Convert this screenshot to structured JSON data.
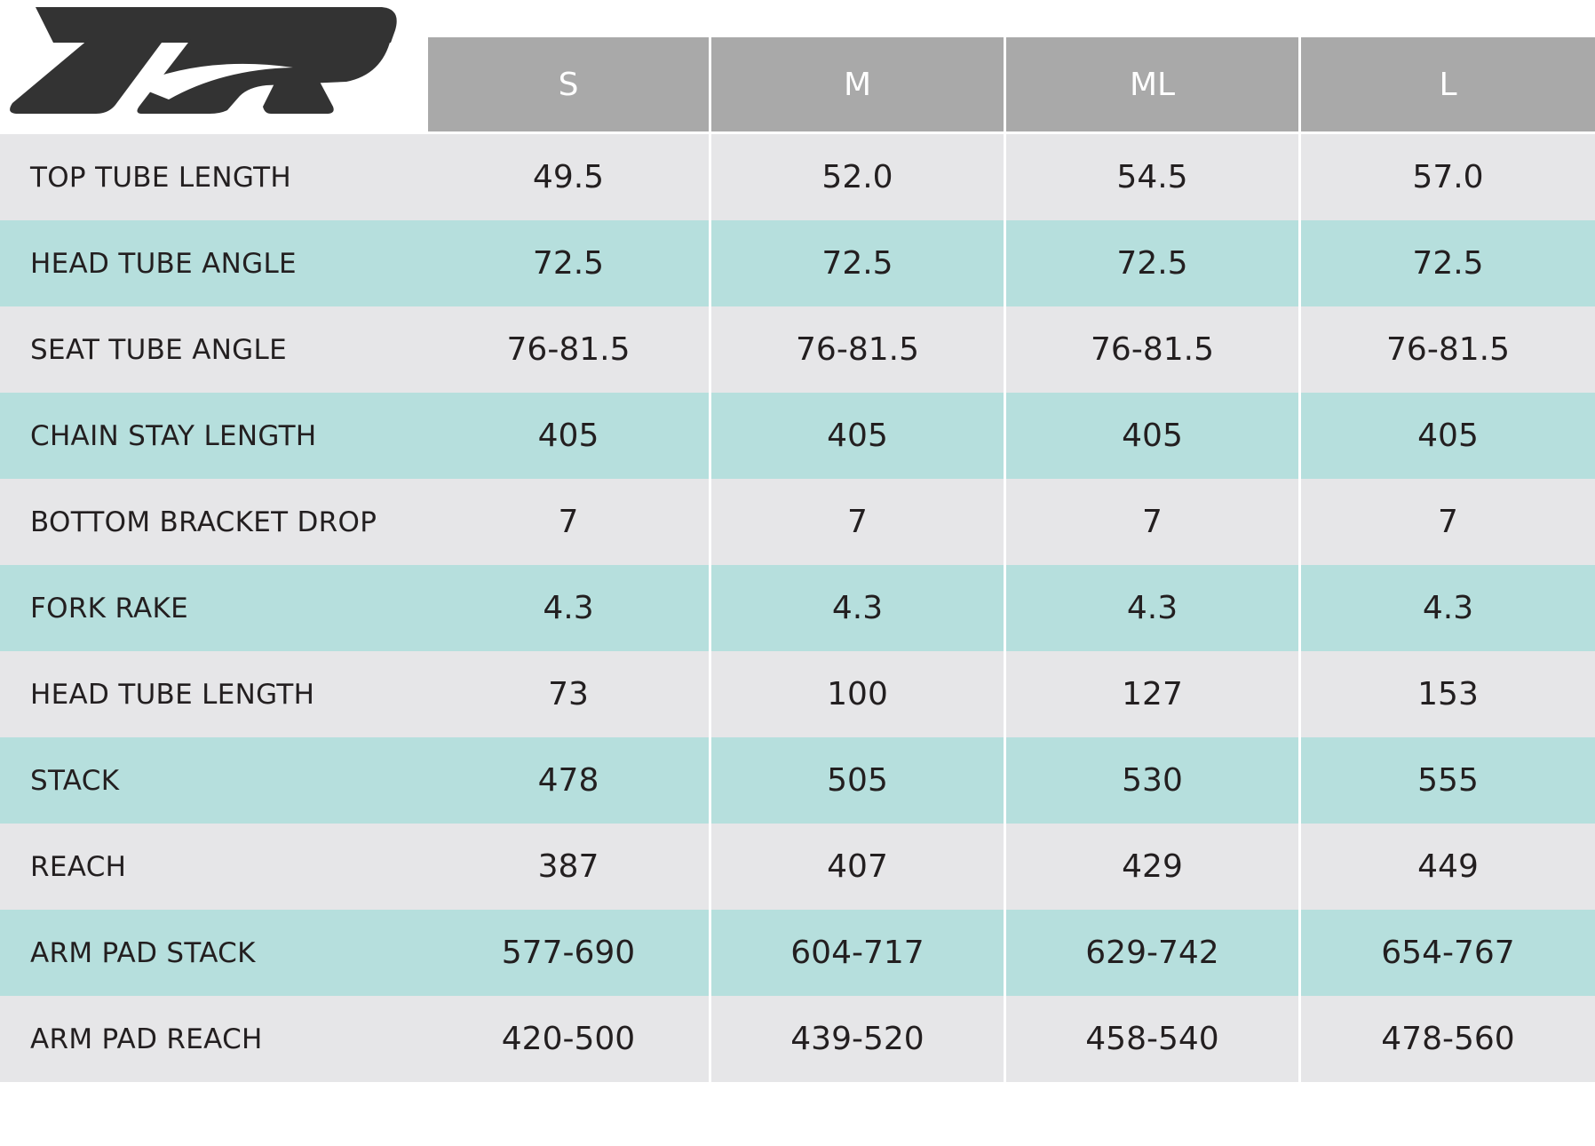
{
  "brand": {
    "logo_text": "TR",
    "logo_color": "#333333"
  },
  "colors": {
    "header_bg": "#a9a9a9",
    "header_text": "#ffffff",
    "row_gray": "#e6e6e8",
    "row_teal": "#b6dfdd",
    "text": "#231f20"
  },
  "table": {
    "columns": [
      "S",
      "M",
      "ML",
      "L"
    ],
    "rows": [
      {
        "label": "TOP TUBE LENGTH",
        "values": [
          "49.5",
          "52.0",
          "54.5",
          "57.0"
        ]
      },
      {
        "label": "HEAD TUBE ANGLE",
        "values": [
          "72.5",
          "72.5",
          "72.5",
          "72.5"
        ]
      },
      {
        "label": "SEAT TUBE ANGLE",
        "values": [
          "76-81.5",
          "76-81.5",
          "76-81.5",
          "76-81.5"
        ]
      },
      {
        "label": "CHAIN STAY LENGTH",
        "values": [
          "405",
          "405",
          "405",
          "405"
        ]
      },
      {
        "label": "BOTTOM BRACKET DROP",
        "values": [
          "7",
          "7",
          "7",
          "7"
        ]
      },
      {
        "label": "FORK RAKE",
        "values": [
          "4.3",
          "4.3",
          "4.3",
          "4.3"
        ]
      },
      {
        "label": "HEAD TUBE LENGTH",
        "values": [
          "73",
          "100",
          "127",
          "153"
        ]
      },
      {
        "label": "STACK",
        "values": [
          "478",
          "505",
          "530",
          "555"
        ]
      },
      {
        "label": "REACH",
        "values": [
          "387",
          "407",
          "429",
          "449"
        ]
      },
      {
        "label": "ARM PAD STACK",
        "values": [
          "577-690",
          "604-717",
          "629-742",
          "654-767"
        ]
      },
      {
        "label": "ARM PAD REACH",
        "values": [
          "420-500",
          "439-520",
          "458-540",
          "478-560"
        ]
      }
    ]
  }
}
